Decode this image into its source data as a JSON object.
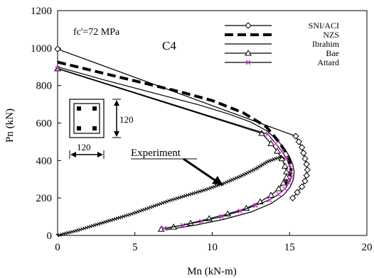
{
  "chart_data": {
    "type": "line",
    "title": "",
    "xlabel": "Mn (kN-m)",
    "ylabel": "Pn (kN)",
    "xlim": [
      0,
      20
    ],
    "ylim": [
      0,
      1200
    ],
    "xticks": [
      0,
      5,
      10,
      15,
      20
    ],
    "yticks": [
      0,
      200,
      400,
      600,
      800,
      1000,
      1200
    ],
    "grid": false,
    "legend_position": "top-right",
    "annotations": {
      "strength": "fc'=72 MPa",
      "specimen": "C4",
      "experiment": "Experiment",
      "section_dim_vertical": "120",
      "section_dim_horizontal": "120"
    },
    "series": [
      {
        "name": "SNI/ACI",
        "style": "solid",
        "marker": "diamond",
        "color": "#000000",
        "points": [
          [
            0,
            995
          ],
          [
            15.4,
            530
          ],
          [
            15.6,
            500
          ],
          [
            15.8,
            470
          ],
          [
            15.9,
            440
          ],
          [
            16.0,
            410
          ],
          [
            16.1,
            380
          ],
          [
            16.15,
            350
          ],
          [
            16.1,
            320
          ],
          [
            16.0,
            290
          ],
          [
            15.8,
            260
          ],
          [
            15.5,
            230
          ],
          [
            15.2,
            200
          ]
        ]
      },
      {
        "name": "NZS",
        "style": "dashed",
        "marker": "none",
        "color": "#000000",
        "points": [
          [
            0,
            925
          ],
          [
            2,
            885
          ],
          [
            4,
            845
          ],
          [
            6,
            805
          ],
          [
            8,
            765
          ],
          [
            10,
            720
          ],
          [
            12,
            655
          ],
          [
            13.5,
            580
          ],
          [
            14.3,
            500
          ],
          [
            14.8,
            440
          ],
          [
            15.0,
            400
          ],
          [
            15.1,
            360
          ],
          [
            15.05,
            330
          ],
          [
            14.9,
            300
          ],
          [
            14.7,
            270
          ]
        ]
      },
      {
        "name": "Ibrahim",
        "style": "solid",
        "marker": "none",
        "color": "#000000",
        "points": [
          [
            0,
            900
          ],
          [
            3,
            830
          ],
          [
            6,
            765
          ],
          [
            9,
            700
          ],
          [
            11,
            650
          ],
          [
            12.5,
            605
          ],
          [
            13.5,
            560
          ],
          [
            14.2,
            510
          ],
          [
            14.7,
            460
          ],
          [
            15.0,
            420
          ],
          [
            15.2,
            380
          ],
          [
            15.3,
            340
          ],
          [
            15.25,
            300
          ],
          [
            15.05,
            260
          ],
          [
            14.6,
            215
          ],
          [
            13.8,
            170
          ],
          [
            12.5,
            125
          ],
          [
            10.7,
            85
          ],
          [
            8.9,
            55
          ],
          [
            7.0,
            30
          ]
        ]
      },
      {
        "name": "Bae",
        "style": "solid",
        "marker": "triangle",
        "color": "#000000",
        "points": [
          [
            0,
            890
          ],
          [
            13.2,
            545
          ],
          [
            13.8,
            490
          ],
          [
            14.2,
            450
          ],
          [
            14.5,
            410
          ],
          [
            14.7,
            370
          ],
          [
            14.8,
            340
          ],
          [
            14.8,
            310
          ],
          [
            14.6,
            280
          ],
          [
            14.3,
            250
          ],
          [
            13.8,
            215
          ],
          [
            13.1,
            180
          ],
          [
            12.2,
            145
          ],
          [
            11.0,
            115
          ],
          [
            9.8,
            90
          ],
          [
            8.6,
            65
          ],
          [
            7.5,
            45
          ],
          [
            6.7,
            33
          ]
        ]
      },
      {
        "name": "Attard",
        "style": "solid",
        "marker": "x",
        "color": "#cc33cc",
        "points": [
          [
            0,
            892
          ],
          [
            13.6,
            540
          ],
          [
            14.1,
            490
          ],
          [
            14.5,
            450
          ],
          [
            14.8,
            410
          ],
          [
            15.0,
            375
          ],
          [
            15.1,
            340
          ],
          [
            15.1,
            310
          ],
          [
            14.95,
            280
          ],
          [
            14.7,
            250
          ],
          [
            14.3,
            220
          ],
          [
            13.7,
            190
          ],
          [
            12.8,
            160
          ],
          [
            11.8,
            130
          ],
          [
            10.6,
            100
          ],
          [
            9.3,
            75
          ],
          [
            8.1,
            55
          ],
          [
            6.9,
            38
          ]
        ]
      },
      {
        "name": "Experiment",
        "style": "dense-markers",
        "marker": "dash",
        "color": "#000000",
        "points": [
          [
            0,
            0
          ],
          [
            1.2,
            25
          ],
          [
            2.4,
            55
          ],
          [
            3.6,
            85
          ],
          [
            4.8,
            115
          ],
          [
            6.0,
            150
          ],
          [
            7.2,
            185
          ],
          [
            8.4,
            215
          ],
          [
            9.6,
            245
          ],
          [
            10.8,
            280
          ],
          [
            11.8,
            315
          ],
          [
            12.8,
            355
          ],
          [
            13.6,
            395
          ],
          [
            14.1,
            410
          ],
          [
            14.5,
            420
          ],
          [
            14.7,
            410
          ]
        ]
      }
    ]
  }
}
